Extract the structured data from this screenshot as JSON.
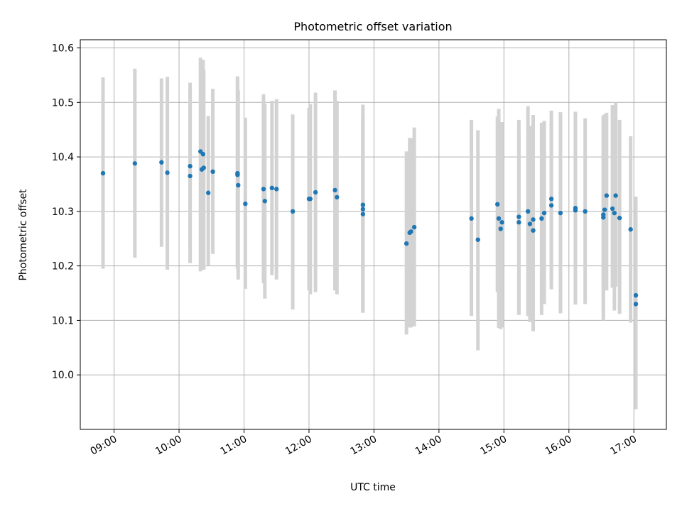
{
  "chart_data": {
    "type": "scatter",
    "title": "Photometric offset variation",
    "xlabel": "UTC time",
    "ylabel": "Photometric offset",
    "x_ticks": [
      "09:00",
      "10:00",
      "11:00",
      "12:00",
      "13:00",
      "14:00",
      "15:00",
      "16:00",
      "17:00"
    ],
    "x_tick_hours": [
      9,
      10,
      11,
      12,
      13,
      14,
      15,
      16,
      17
    ],
    "y_ticks": [
      "10.0",
      "10.1",
      "10.2",
      "10.3",
      "10.4",
      "10.5",
      "10.6"
    ],
    "y_tick_values": [
      10.0,
      10.1,
      10.2,
      10.3,
      10.4,
      10.5,
      10.6
    ],
    "xlim_hours": [
      8.48,
      17.5
    ],
    "ylim": [
      9.9,
      10.615
    ],
    "grid": true,
    "marker_color": "#1f77b4",
    "errorbar_color": "#d3d3d3",
    "series": [
      {
        "x_hours": [
          8.83,
          9.32,
          9.73,
          9.82,
          10.17,
          10.17,
          10.33,
          10.35,
          10.37,
          10.38,
          10.45,
          10.52,
          10.9,
          10.9,
          10.91,
          11.02,
          11.3,
          11.32,
          11.43,
          11.5,
          11.75,
          12.0,
          12.02,
          12.1,
          12.4,
          12.43,
          12.83,
          12.83,
          12.83,
          13.5,
          13.55,
          13.57,
          13.62,
          14.5,
          14.6,
          14.9,
          14.92,
          14.95,
          14.97,
          15.23,
          15.23,
          15.37,
          15.4,
          15.45,
          15.45,
          15.58,
          15.62,
          15.73,
          15.73,
          15.87,
          16.1,
          16.1,
          16.25,
          16.53,
          16.53,
          16.55,
          16.58,
          16.67,
          16.7,
          16.72,
          16.78,
          16.95,
          17.03,
          17.03
        ],
        "y": [
          10.37,
          10.388,
          10.39,
          10.371,
          10.383,
          10.365,
          10.41,
          10.377,
          10.405,
          10.38,
          10.334,
          10.373,
          10.37,
          10.367,
          10.348,
          10.314,
          10.341,
          10.319,
          10.343,
          10.341,
          10.3,
          10.323,
          10.323,
          10.335,
          10.339,
          10.326,
          10.312,
          10.304,
          10.295,
          10.241,
          10.261,
          10.263,
          10.271,
          10.287,
          10.248,
          10.313,
          10.287,
          10.268,
          10.28,
          10.29,
          10.28,
          10.3,
          10.277,
          10.285,
          10.265,
          10.287,
          10.297,
          10.323,
          10.311,
          10.297,
          10.306,
          10.302,
          10.3,
          10.294,
          10.289,
          10.303,
          10.329,
          10.305,
          10.297,
          10.329,
          10.288,
          10.267,
          10.146,
          10.13
        ],
        "yerr_low": [
          10.195,
          10.215,
          10.235,
          10.193,
          10.232,
          10.205,
          10.19,
          10.24,
          10.235,
          10.193,
          10.2,
          10.222,
          10.195,
          10.197,
          10.175,
          10.158,
          10.168,
          10.14,
          10.183,
          10.175,
          10.12,
          10.155,
          10.148,
          10.152,
          10.155,
          10.148,
          10.126,
          10.114,
          10.114,
          10.074,
          10.087,
          10.087,
          10.089,
          10.108,
          10.045,
          10.152,
          10.086,
          10.084,
          10.087,
          10.11,
          10.112,
          10.108,
          10.097,
          10.096,
          10.08,
          10.11,
          10.13,
          10.167,
          10.157,
          10.113,
          10.129,
          10.129,
          10.13,
          10.114,
          10.1,
          10.158,
          10.155,
          10.16,
          10.118,
          10.162,
          10.112,
          10.096,
          9.937,
          9.937
        ],
        "yerr_high": [
          10.546,
          10.562,
          10.544,
          10.547,
          10.536,
          10.526,
          10.582,
          10.515,
          10.578,
          10.56,
          10.475,
          10.525,
          10.548,
          10.545,
          10.522,
          10.472,
          10.515,
          10.498,
          10.503,
          10.506,
          10.478,
          10.49,
          10.497,
          10.518,
          10.522,
          10.503,
          10.462,
          10.496,
          10.476,
          10.41,
          10.435,
          10.434,
          10.454,
          10.468,
          10.449,
          10.474,
          10.488,
          10.452,
          10.464,
          10.468,
          10.445,
          10.493,
          10.457,
          10.477,
          10.451,
          10.463,
          10.466,
          10.485,
          10.466,
          10.482,
          10.483,
          10.471,
          10.471,
          10.474,
          10.476,
          10.478,
          10.481,
          10.495,
          10.432,
          10.499,
          10.468,
          10.438,
          10.327,
          10.327
        ]
      }
    ]
  }
}
